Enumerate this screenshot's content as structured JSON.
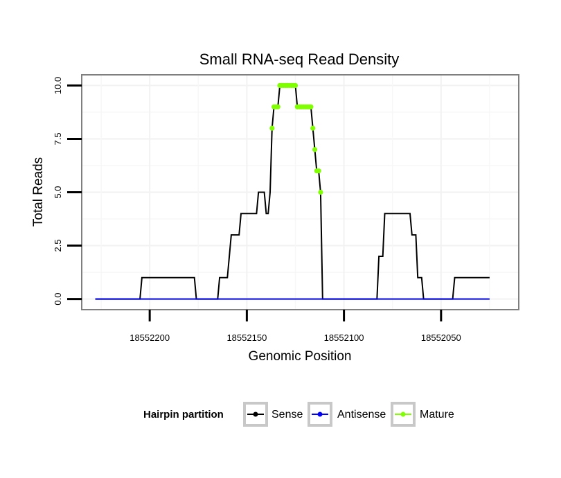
{
  "chart_data": {
    "type": "line",
    "title": "Small RNA-seq Read Density",
    "xlabel": "Genomic Position",
    "ylabel": "Total Reads",
    "xlim": [
      18552235,
      18552010
    ],
    "ylim": [
      -0.5,
      10.5
    ],
    "x_reversed": true,
    "xticks": [
      18552200,
      18552150,
      18552100,
      18552050
    ],
    "xtick_labels": [
      "18552200",
      "18552150",
      "18552100",
      "18552050"
    ],
    "yticks": [
      0,
      2.5,
      5,
      7.5,
      10
    ],
    "ytick_labels": [
      "0.0",
      "2.5",
      "5.0",
      "7.5",
      "10.0"
    ],
    "grid": true,
    "legend": {
      "title": "Hairpin partition",
      "position": "bottom",
      "entries": [
        "Sense",
        "Antisense",
        "Mature"
      ]
    },
    "series": [
      {
        "name": "Sense",
        "color": "#000000",
        "points": [
          [
            18552228,
            0
          ],
          [
            18552205,
            0
          ],
          [
            18552204,
            1
          ],
          [
            18552177,
            1
          ],
          [
            18552176,
            0
          ],
          [
            18552165,
            0
          ],
          [
            18552164,
            1
          ],
          [
            18552160,
            1
          ],
          [
            18552158,
            3
          ],
          [
            18552154,
            3
          ],
          [
            18552153,
            4
          ],
          [
            18552145,
            4
          ],
          [
            18552144,
            5
          ],
          [
            18552141,
            5
          ],
          [
            18552140,
            4
          ],
          [
            18552139,
            4
          ],
          [
            18552138,
            5
          ],
          [
            18552137,
            8
          ],
          [
            18552136,
            9
          ],
          [
            18552134,
            9
          ],
          [
            18552133,
            10
          ],
          [
            18552125,
            10
          ],
          [
            18552124,
            9
          ],
          [
            18552117,
            9
          ],
          [
            18552116,
            8
          ],
          [
            18552115,
            7
          ],
          [
            18552114,
            6
          ],
          [
            18552113,
            6
          ],
          [
            18552112,
            5
          ],
          [
            18552111,
            0
          ],
          [
            18552083,
            0
          ],
          [
            18552082,
            2
          ],
          [
            18552080,
            2
          ],
          [
            18552079,
            4
          ],
          [
            18552066,
            4
          ],
          [
            18552065,
            3
          ],
          [
            18552063,
            3
          ],
          [
            18552062,
            1
          ],
          [
            18552060,
            1
          ],
          [
            18552059,
            0
          ],
          [
            18552044,
            0
          ],
          [
            18552043,
            1
          ],
          [
            18552025,
            1
          ]
        ]
      },
      {
        "name": "Antisense",
        "color": "#0000ff",
        "points": [
          [
            18552228,
            0
          ],
          [
            18552025,
            0
          ]
        ]
      },
      {
        "name": "Mature",
        "color": "#7fff00",
        "points": [
          [
            18552137,
            8
          ],
          [
            18552136,
            9
          ],
          [
            18552135,
            9
          ],
          [
            18552134,
            9
          ],
          [
            18552133,
            10
          ],
          [
            18552132,
            10
          ],
          [
            18552131,
            10
          ],
          [
            18552130,
            10
          ],
          [
            18552129,
            10
          ],
          [
            18552128,
            10
          ],
          [
            18552127,
            10
          ],
          [
            18552126,
            10
          ],
          [
            18552125,
            10
          ],
          [
            18552124,
            9
          ],
          [
            18552123,
            9
          ],
          [
            18552122,
            9
          ],
          [
            18552121,
            9
          ],
          [
            18552120,
            9
          ],
          [
            18552119,
            9
          ],
          [
            18552118,
            9
          ],
          [
            18552117,
            9
          ],
          [
            18552116,
            8
          ],
          [
            18552115,
            7
          ],
          [
            18552114,
            6
          ],
          [
            18552113,
            6
          ],
          [
            18552112,
            5
          ]
        ]
      }
    ]
  }
}
